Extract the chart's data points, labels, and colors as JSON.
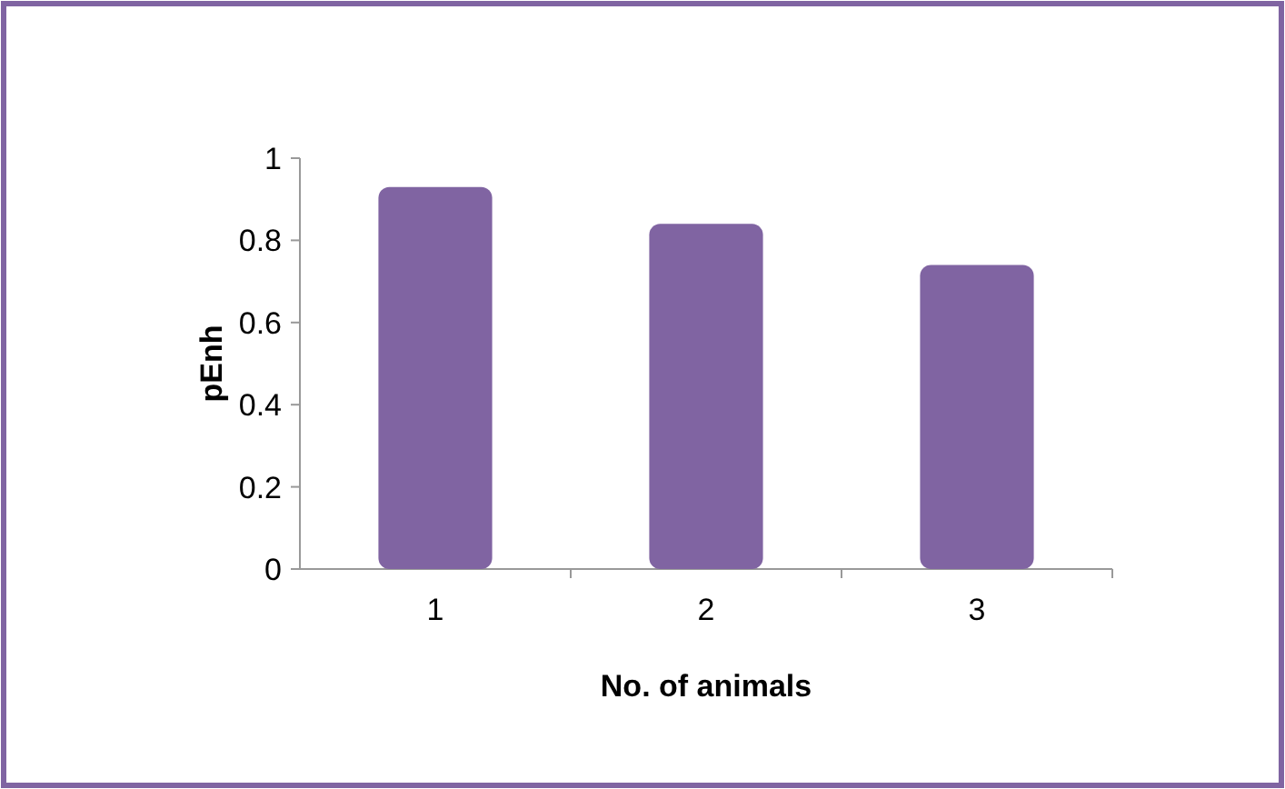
{
  "chart_data": {
    "type": "bar",
    "xlabel": "No. of animals",
    "ylabel": "pEnh",
    "categories": [
      "1",
      "2",
      "3"
    ],
    "values": [
      0.93,
      0.84,
      0.74
    ],
    "color": "#8064a2",
    "ylim": [
      0,
      1
    ],
    "yticks": [
      0,
      0.2,
      0.4,
      0.6,
      0.8,
      1
    ],
    "grid": false
  }
}
